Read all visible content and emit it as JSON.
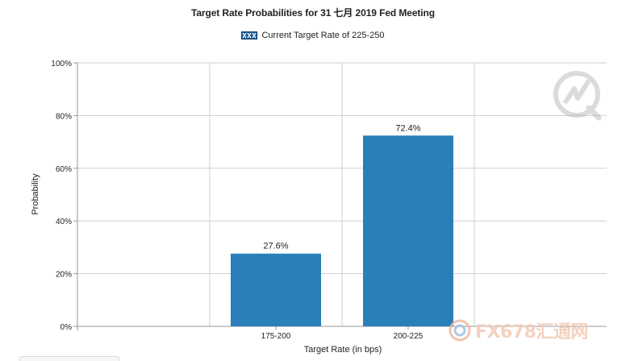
{
  "chart_data": {
    "type": "bar",
    "title": "Target Rate Probabilities for 31 七月 2019  Fed Meeting",
    "legend": {
      "label": "Current Target Rate of 225-250",
      "placement": "top-center"
    },
    "categories": [
      "",
      "175-200",
      "200-225",
      ""
    ],
    "series": [
      {
        "name": "Probability",
        "values": [
          null,
          27.6,
          72.4,
          null
        ],
        "labels": [
          "",
          "27.6%",
          "72.4%",
          ""
        ]
      }
    ],
    "xlabel": "Target Rate (in bps)",
    "ylabel": "Probability",
    "ylim": [
      0,
      100
    ],
    "yticks": [
      0,
      20,
      40,
      60,
      80,
      100
    ],
    "ytick_labels": [
      "0%",
      "20%",
      "40%",
      "60%",
      "80%",
      "100%"
    ],
    "grid": true
  },
  "watermark": {
    "brand": "FX678汇通网"
  },
  "colors": {
    "bar": "#2b7fb8",
    "legend_swatch_fill": "#1f5f9a",
    "grid": "#cfcfcf",
    "axis": "#999999",
    "text": "#222222"
  }
}
